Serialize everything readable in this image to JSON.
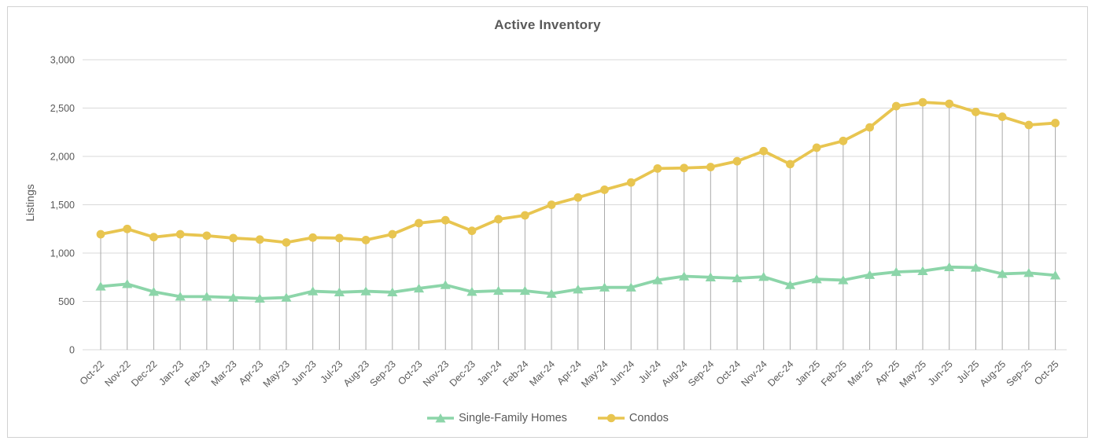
{
  "page": {
    "background_color": "#ffffff",
    "frame_border_color": "#d2d2d2"
  },
  "chart_data": {
    "type": "line",
    "title": "Active Inventory",
    "xlabel": "",
    "ylabel": "Listings",
    "categories": [
      "Oct-22",
      "Nov-22",
      "Dec-22",
      "Jan-23",
      "Feb-23",
      "Mar-23",
      "Apr-23",
      "May-23",
      "Jun-23",
      "Jul-23",
      "Aug-23",
      "Sep-23",
      "Oct-23",
      "Nov-23",
      "Dec-23",
      "Jan-24",
      "Feb-24",
      "Mar-24",
      "Apr-24",
      "May-24",
      "Jun-24",
      "Jul-24",
      "Aug-24",
      "Sep-24",
      "Oct-24",
      "Nov-24",
      "Dec-24",
      "Jan-25",
      "Feb-25",
      "Mar-25",
      "Apr-25",
      "May-25",
      "Jun-25",
      "Jul-25",
      "Aug-25",
      "Sep-25",
      "Oct-25"
    ],
    "series": [
      {
        "name": "Single-Family Homes",
        "marker": "triangle",
        "color": "#8CD5A9",
        "values": [
          655,
          680,
          600,
          550,
          550,
          540,
          530,
          540,
          605,
          595,
          605,
          595,
          635,
          670,
          600,
          610,
          610,
          580,
          625,
          645,
          645,
          720,
          760,
          750,
          740,
          755,
          670,
          730,
          720,
          775,
          805,
          815,
          855,
          850,
          785,
          795,
          770
        ]
      },
      {
        "name": "Condos",
        "marker": "circle",
        "color": "#E8C550",
        "values": [
          1195,
          1250,
          1165,
          1195,
          1180,
          1155,
          1140,
          1110,
          1160,
          1155,
          1135,
          1195,
          1310,
          1340,
          1230,
          1350,
          1390,
          1500,
          1575,
          1655,
          1730,
          1875,
          1880,
          1890,
          1950,
          2055,
          1920,
          2090,
          2160,
          2300,
          2520,
          2560,
          2545,
          2460,
          2410,
          2325,
          2345
        ]
      }
    ],
    "ylim": [
      0,
      3000
    ],
    "yticks": [
      0,
      500,
      1000,
      1500,
      2000,
      2500,
      3000
    ],
    "ytick_labels": [
      "0",
      "500",
      "1,000",
      "1,500",
      "2,000",
      "2,500",
      "3,000"
    ],
    "grid": "horizontal",
    "drop_lines": true,
    "legend_position": "bottom",
    "axis_text_color": "#595959",
    "gridline_color": "#D9D9D9",
    "drop_line_color": "#A9A9A9"
  }
}
